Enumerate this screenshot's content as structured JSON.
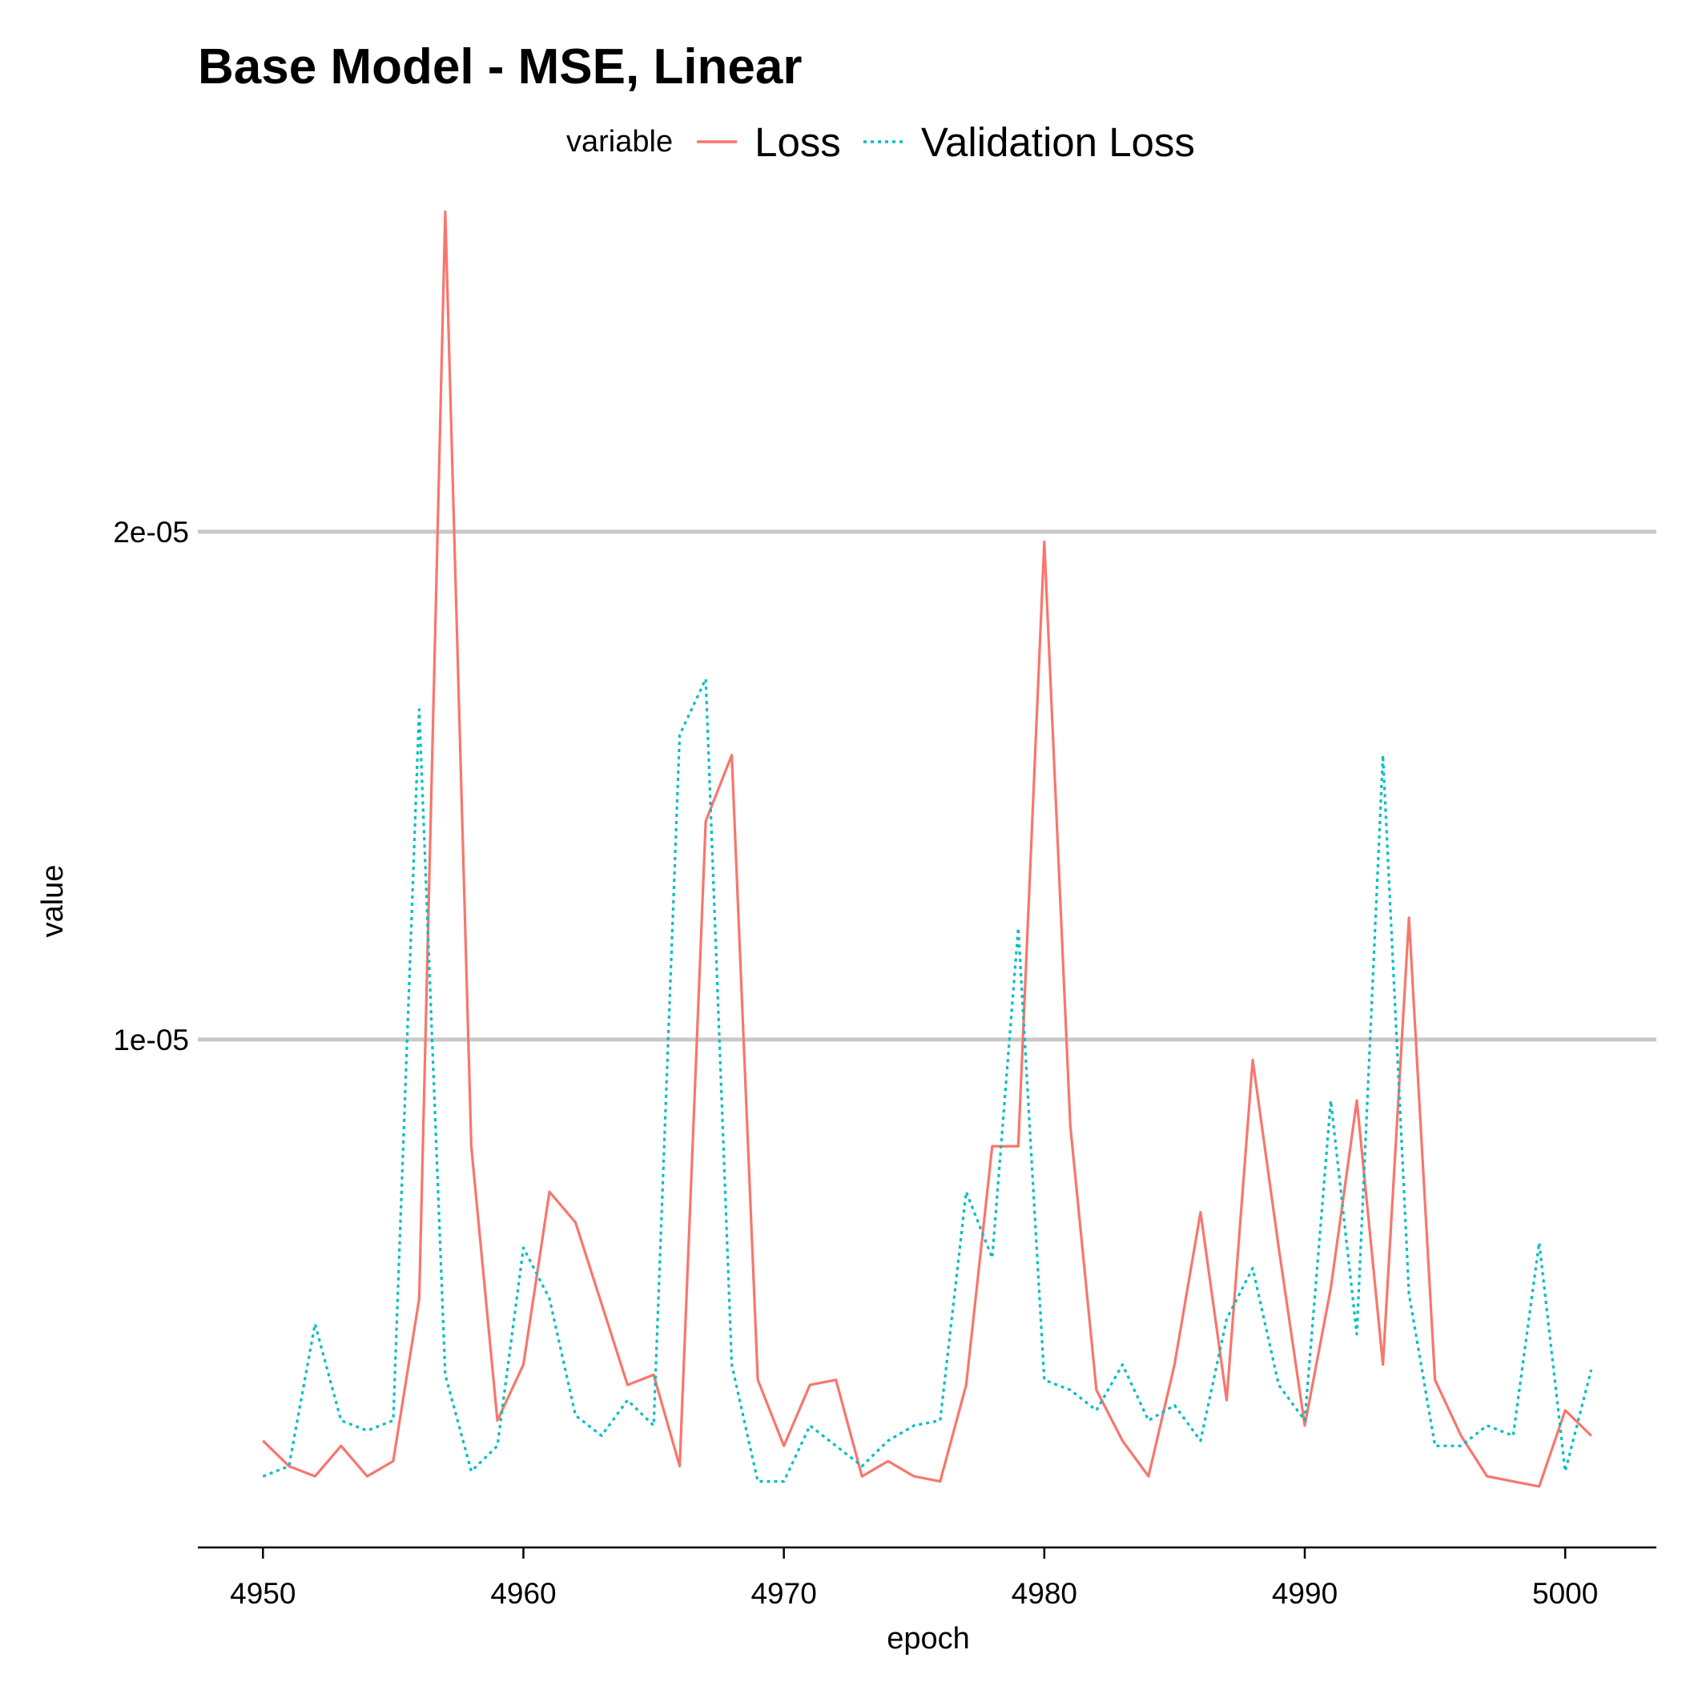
{
  "chart_data": {
    "type": "line",
    "title": "Base Model - MSE, Linear",
    "xlabel": "epoch",
    "ylabel": "value",
    "legend": {
      "title": "variable",
      "placement": "top",
      "entries": [
        {
          "name": "Loss",
          "color": "#F8766D",
          "linetype": "solid"
        },
        {
          "name": "Validation Loss",
          "color": "#00BFC4",
          "linetype": "dotted"
        }
      ]
    },
    "xlim": [
      4947.5,
      5003.5
    ],
    "ylim": [
      0.0,
      2.7e-05
    ],
    "x_ticks": [
      4950,
      4960,
      4970,
      4980,
      4990,
      5000
    ],
    "x_tick_labels": [
      "4950",
      "4960",
      "4970",
      "4980",
      "4990",
      "5000"
    ],
    "y_ticks": [
      1e-05,
      2e-05
    ],
    "y_tick_labels": [
      "1e-05",
      "2e-05"
    ],
    "grid": {
      "major_y": true,
      "major_x": false
    },
    "x": [
      4950,
      4951,
      4952,
      4953,
      4954,
      4955,
      4956,
      4957,
      4958,
      4959,
      4960,
      4961,
      4962,
      4963,
      4964,
      4965,
      4966,
      4967,
      4968,
      4969,
      4970,
      4971,
      4972,
      4973,
      4974,
      4975,
      4976,
      4977,
      4978,
      4979,
      4980,
      4981,
      4982,
      4983,
      4984,
      4985,
      4986,
      4987,
      4988,
      4989,
      4990,
      4991,
      4992,
      4993,
      4994,
      4995,
      4996,
      4997,
      4998,
      4999,
      5000,
      5001
    ],
    "series": [
      {
        "name": "Loss",
        "color": "#F8766D",
        "linetype": "solid",
        "values": [
          2.1e-06,
          1.6e-06,
          1.4e-06,
          2e-06,
          1.4e-06,
          1.7e-06,
          4.9e-06,
          2.63e-05,
          7.9e-06,
          2.5e-06,
          3.6e-06,
          7e-06,
          6.4e-06,
          4.8e-06,
          3.2e-06,
          3.4e-06,
          1.6e-06,
          1.43e-05,
          1.56e-05,
          3.3e-06,
          2e-06,
          3.2e-06,
          3.3e-06,
          1.4e-06,
          1.7e-06,
          1.4e-06,
          1.3e-06,
          3.2e-06,
          7.9e-06,
          7.9e-06,
          1.98e-05,
          8.3e-06,
          3.1e-06,
          2.1e-06,
          1.4e-06,
          3.6e-06,
          6.6e-06,
          2.9e-06,
          9.6e-06,
          5.9e-06,
          2.4e-06,
          5.1e-06,
          8.8e-06,
          3.6e-06,
          1.24e-05,
          3.3e-06,
          2.2e-06,
          1.4e-06,
          1.3e-06,
          1.2e-06,
          2.7e-06,
          2.2e-06
        ]
      },
      {
        "name": "Validation Loss",
        "color": "#00BFC4",
        "linetype": "dotted",
        "values": [
          1.4e-06,
          1.6e-06,
          4.4e-06,
          2.5e-06,
          2.3e-06,
          2.5e-06,
          1.65e-05,
          3.4e-06,
          1.5e-06,
          2e-06,
          5.9e-06,
          4.9e-06,
          2.6e-06,
          2.2e-06,
          2.9e-06,
          2.4e-06,
          1.6e-05,
          1.71e-05,
          3.6e-06,
          1.3e-06,
          1.3e-06,
          2.4e-06,
          2e-06,
          1.6e-06,
          2.1e-06,
          2.4e-06,
          2.5e-06,
          7e-06,
          5.7e-06,
          1.22e-05,
          3.3e-06,
          3.1e-06,
          2.7e-06,
          3.6e-06,
          2.5e-06,
          2.8e-06,
          2.1e-06,
          4.5e-06,
          5.5e-06,
          3.2e-06,
          2.5e-06,
          8.8e-06,
          4.2e-06,
          1.56e-05,
          5e-06,
          2e-06,
          2e-06,
          2.4e-06,
          2.2e-06,
          6e-06,
          1.5e-06,
          3.5e-06
        ]
      }
    ]
  }
}
